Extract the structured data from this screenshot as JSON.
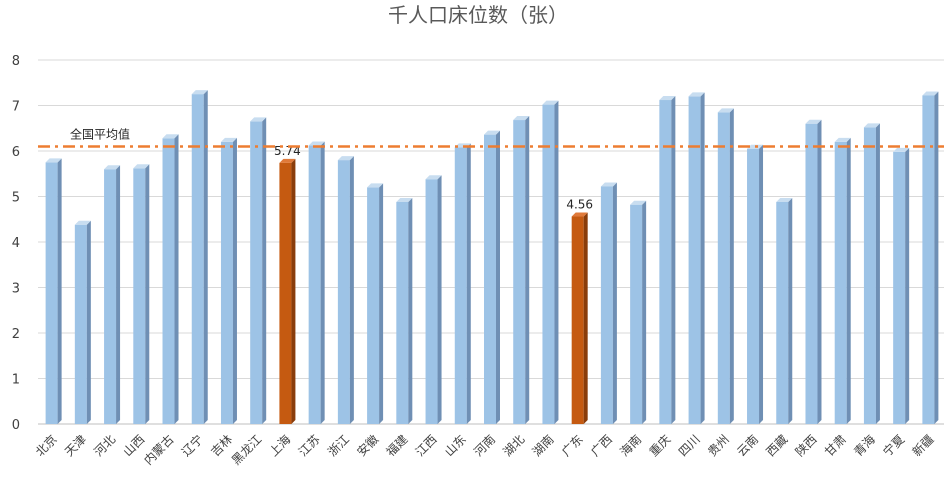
{
  "chart_data": {
    "type": "bar",
    "title": "千人口床位数（张）",
    "xlabel": "",
    "ylabel": "",
    "ylim": [
      0,
      8
    ],
    "yticks": [
      0,
      1,
      2,
      3,
      4,
      5,
      6,
      7,
      8
    ],
    "grid": true,
    "categories": [
      "北京",
      "天津",
      "河北",
      "山西",
      "内蒙古",
      "辽宁",
      "吉林",
      "黑龙江",
      "上海",
      "江苏",
      "浙江",
      "安徽",
      "福建",
      "江西",
      "山东",
      "河南",
      "湖北",
      "湖南",
      "广东",
      "广西",
      "海南",
      "重庆",
      "四川",
      "贵州",
      "云南",
      "西藏",
      "陕西",
      "甘肃",
      "青海",
      "宁夏",
      "新疆"
    ],
    "values": [
      5.75,
      4.38,
      5.6,
      5.62,
      6.28,
      7.25,
      6.2,
      6.65,
      5.74,
      6.12,
      5.8,
      5.2,
      4.88,
      5.38,
      6.08,
      6.36,
      6.68,
      7.02,
      4.56,
      5.22,
      4.82,
      7.12,
      7.2,
      6.85,
      6.05,
      4.88,
      6.6,
      6.2,
      6.52,
      5.98,
      7.22
    ],
    "highlighted": [
      "上海",
      "广东"
    ],
    "data_labels": [
      {
        "category": "上海",
        "text": "5.74"
      },
      {
        "category": "广东",
        "text": "4.56"
      }
    ],
    "reference_line": {
      "label": "全国平均值",
      "value": 6.1,
      "style": "dash-dot"
    },
    "colors": {
      "bar": "#9dc3e6",
      "bar_side": "#6f8fb4",
      "bar_top": "#c8ddf0",
      "highlight": "#c55a11",
      "highlight_side": "#8a3d0b",
      "highlight_top": "#e07a3a",
      "reference": "#ed7d31",
      "grid": "#d9d9d9",
      "axis": "#bfbfbf"
    }
  }
}
